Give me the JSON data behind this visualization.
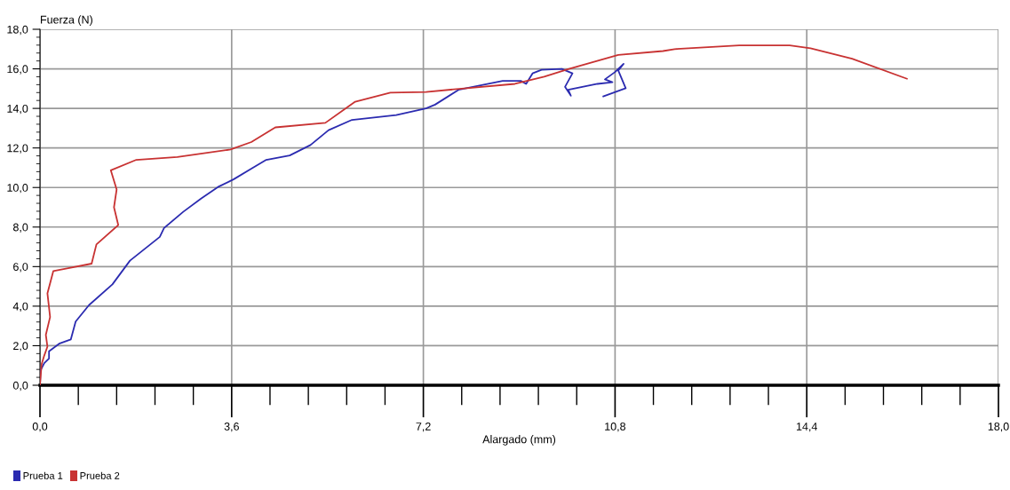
{
  "chart_data": {
    "type": "line",
    "xlabel": "Alargado (mm)",
    "ylabel": "Fuerza (N)",
    "xlim": [
      0,
      18
    ],
    "ylim": [
      0,
      18
    ],
    "xticks": [
      {
        "value": 0,
        "label": "0,0"
      },
      {
        "value": 3.6,
        "label": "3,6"
      },
      {
        "value": 7.2,
        "label": "7,2"
      },
      {
        "value": 10.8,
        "label": "10,8"
      },
      {
        "value": 14.4,
        "label": "14,4"
      },
      {
        "value": 18,
        "label": "18,0"
      }
    ],
    "yticks": [
      {
        "value": 0,
        "label": "0,0"
      },
      {
        "value": 2,
        "label": "2,0"
      },
      {
        "value": 4,
        "label": "4,0"
      },
      {
        "value": 6,
        "label": "6,0"
      },
      {
        "value": 8,
        "label": "8,0"
      },
      {
        "value": 10,
        "label": "10,0"
      },
      {
        "value": 12,
        "label": "12,0"
      },
      {
        "value": 14,
        "label": "14,0"
      },
      {
        "value": 16,
        "label": "16,0"
      },
      {
        "value": 18,
        "label": "18,0"
      }
    ],
    "grid": true,
    "legend": "bottom left",
    "marker": "none",
    "line_style": "solid",
    "series": [
      {
        "name": "Prueba 1",
        "color": "#2b2bb0",
        "x": [
          0,
          0.01,
          0.08,
          0.17,
          0.17,
          0.36,
          0.58,
          0.67,
          0.92,
          1.36,
          1.69,
          2.25,
          2.33,
          2.69,
          3.03,
          3.36,
          3.64,
          3.97,
          4.25,
          4.69,
          5.08,
          5.42,
          5.86,
          6.69,
          7.25,
          7.42,
          7.86,
          8.69,
          9.03,
          9.13,
          9.25,
          9.42,
          9.8,
          10.0,
          9.86,
          9.97,
          9.92,
          10.47,
          10.75,
          10.61,
          10.8,
          10.96,
          10.86,
          11.0,
          10.58
        ],
        "values": [
          0,
          0.75,
          1.12,
          1.35,
          1.72,
          2.1,
          2.32,
          3.22,
          4.05,
          5.1,
          6.3,
          7.5,
          7.95,
          8.77,
          9.45,
          10.05,
          10.42,
          10.95,
          11.4,
          11.62,
          12.15,
          12.9,
          13.42,
          13.66,
          14.0,
          14.19,
          14.94,
          15.39,
          15.39,
          15.24,
          15.77,
          15.95,
          16.0,
          15.77,
          15.09,
          14.64,
          14.94,
          15.24,
          15.32,
          15.47,
          15.84,
          16.25,
          15.92,
          15.02,
          14.61
        ]
      },
      {
        "name": "Prueba 2",
        "color": "#c83232",
        "x": [
          0,
          0.03,
          0.08,
          0.14,
          0.11,
          0.19,
          0.14,
          0.25,
          0.53,
          0.97,
          1.06,
          1.47,
          1.39,
          1.44,
          1.33,
          1.81,
          2.58,
          3.58,
          3.97,
          4.42,
          5.36,
          5.75,
          5.92,
          6.58,
          7.25,
          7.92,
          8.92,
          9.47,
          9.92,
          10.86,
          11.7,
          11.92,
          13.13,
          14.08,
          14.47,
          15.25,
          16.28
        ],
        "values": [
          0,
          1.05,
          1.5,
          1.95,
          2.55,
          3.45,
          4.65,
          5.77,
          5.92,
          6.15,
          7.12,
          8.1,
          9.0,
          9.9,
          10.87,
          11.4,
          11.54,
          11.92,
          12.3,
          13.04,
          13.27,
          14.02,
          14.34,
          14.8,
          14.83,
          15.0,
          15.24,
          15.6,
          15.99,
          16.7,
          16.9,
          17.0,
          17.19,
          17.19,
          17.04,
          16.51,
          15.5
        ]
      }
    ]
  }
}
